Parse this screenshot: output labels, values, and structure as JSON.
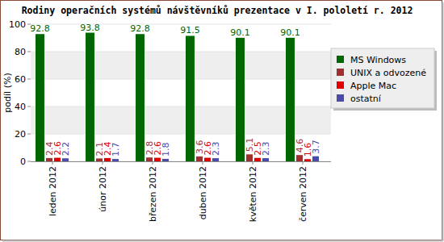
{
  "chart_data": {
    "type": "bar",
    "title": "Rodiny operačních systémů návštěvníků prezentace v I. pololetí r. 2012",
    "y_label": "podíl (%)",
    "categories": [
      "leden 2012",
      "únor 2012",
      "březen 2012",
      "duben 2012",
      "květen 2012",
      "červen 2012"
    ],
    "series": [
      {
        "name": "MS Windows",
        "color": "#006600",
        "values": [
          92.8,
          93.8,
          92.8,
          91.5,
          90.1,
          90.1
        ]
      },
      {
        "name": "UNIX a odvozené",
        "color": "#a03030",
        "values": [
          2.4,
          2.1,
          2.8,
          3.6,
          5.1,
          4.6
        ]
      },
      {
        "name": "Apple Mac",
        "color": "#e00000",
        "values": [
          2.6,
          2.4,
          2.6,
          2.6,
          2.5,
          1.6
        ]
      },
      {
        "name": "ostatní",
        "color": "#4a4aa8",
        "values": [
          2.2,
          1.7,
          1.8,
          2.3,
          2.3,
          3.7
        ]
      }
    ],
    "ylim": [
      0,
      100
    ],
    "yticks": [
      0,
      20,
      40,
      60,
      80,
      100
    ],
    "grid": true,
    "legend": "top-right",
    "data_labels": true
  }
}
